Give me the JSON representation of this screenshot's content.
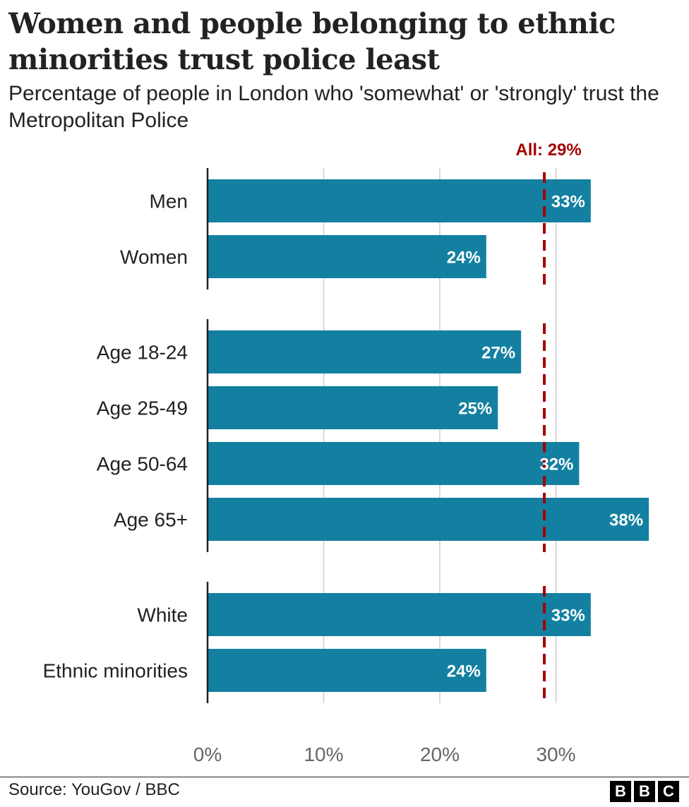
{
  "title": "Women and people belonging to ethnic minorities trust police least",
  "subtitle": "Percentage of people in London who 'somewhat' or 'strongly' trust the Metropolitan Police",
  "source": "Source: YouGov / BBC",
  "logo": [
    "B",
    "B",
    "C"
  ],
  "colors": {
    "bar": "#1380a1",
    "reference": "#a50000",
    "grid": "#cccccc",
    "axis": "#222222",
    "bar_label": "#ffffff",
    "tick_label": "#666666"
  },
  "chart_data": {
    "type": "bar",
    "orientation": "horizontal",
    "categories": [
      "Men",
      "Women",
      "Age 18-24",
      "Age 25-49",
      "Age 50-64",
      "Age 65+",
      "White",
      "Ethnic minorities"
    ],
    "groups": [
      [
        "Men",
        "Women"
      ],
      [
        "Age 18-24",
        "Age 25-49",
        "Age 50-64",
        "Age 65+"
      ],
      [
        "White",
        "Ethnic minorities"
      ]
    ],
    "values": [
      33,
      24,
      27,
      25,
      32,
      38,
      33,
      24
    ],
    "data_labels": [
      "33%",
      "24%",
      "27%",
      "25%",
      "32%",
      "38%",
      "33%",
      "24%"
    ],
    "xlim": [
      0,
      38
    ],
    "xticks": [
      0,
      10,
      20,
      30
    ],
    "xtick_labels": [
      "0%",
      "10%",
      "20%",
      "30%"
    ],
    "reference": {
      "value": 29,
      "label": "All: 29%"
    },
    "grid": true
  }
}
